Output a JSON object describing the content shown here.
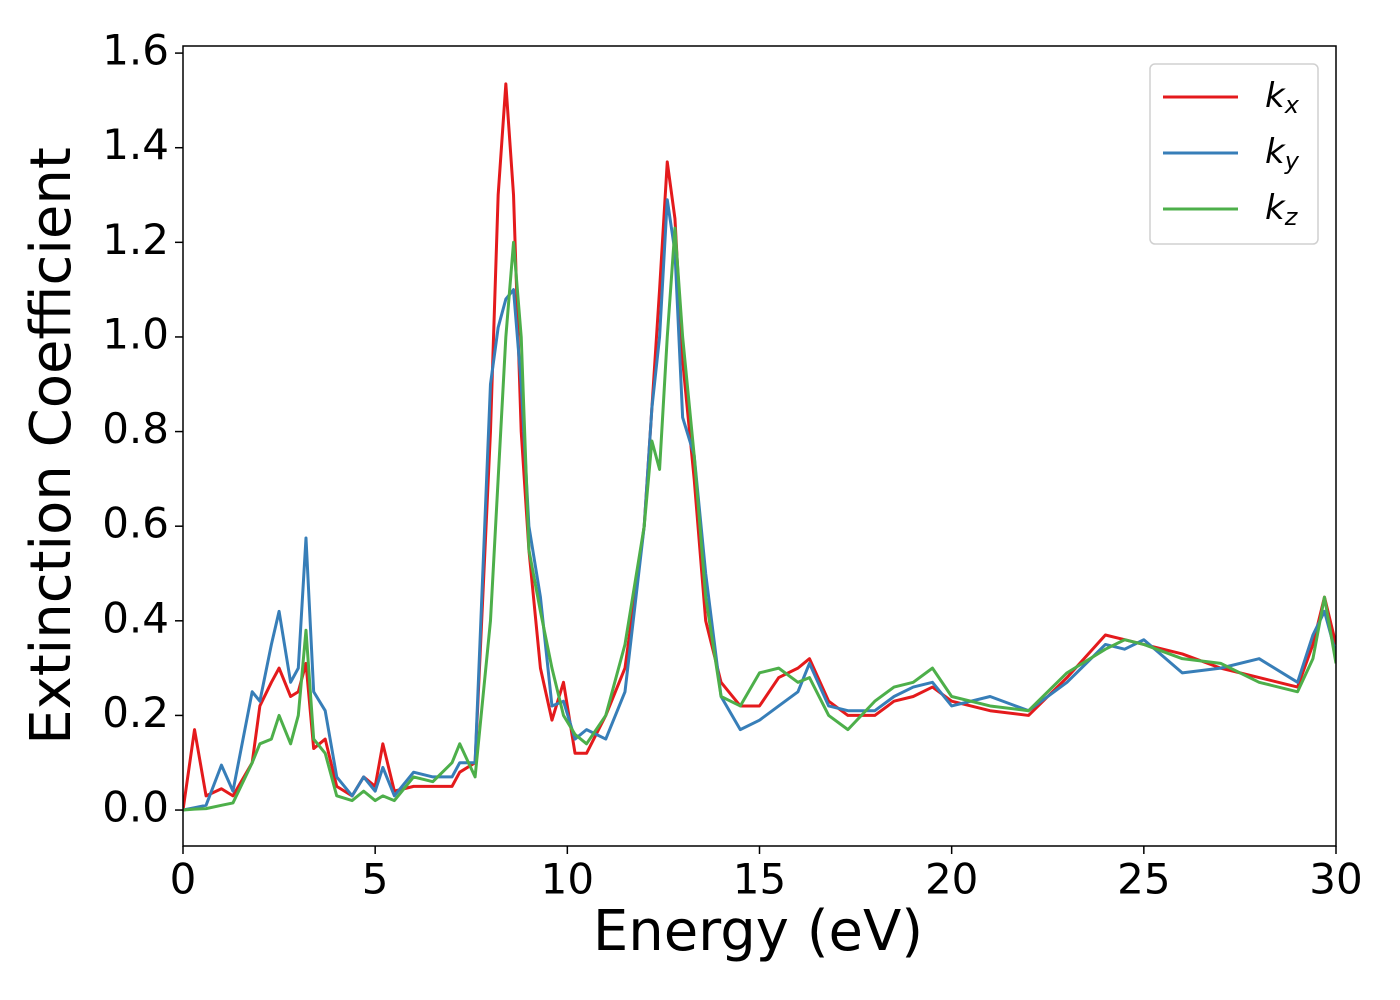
{
  "chart_data": {
    "type": "line",
    "xlabel": "Energy (eV)",
    "ylabel": "Extinction Coefficient",
    "x": [
      0,
      0.3,
      0.6,
      1.0,
      1.3,
      1.8,
      2.0,
      2.3,
      2.5,
      2.8,
      3.0,
      3.2,
      3.4,
      3.7,
      4.0,
      4.4,
      4.7,
      5.0,
      5.2,
      5.5,
      6.0,
      6.5,
      7.0,
      7.2,
      7.6,
      8.0,
      8.2,
      8.4,
      8.6,
      8.8,
      9.0,
      9.3,
      9.6,
      9.9,
      10.2,
      10.5,
      11.0,
      11.5,
      12.0,
      12.2,
      12.4,
      12.6,
      12.8,
      13.0,
      13.3,
      13.6,
      14.0,
      14.5,
      15.0,
      15.5,
      16.0,
      16.3,
      16.8,
      17.3,
      18.0,
      18.5,
      19.0,
      19.5,
      20.0,
      21.0,
      22.0,
      23.0,
      24.0,
      24.5,
      25.0,
      26.0,
      27.0,
      28.0,
      29.0,
      29.4,
      29.7,
      30.0
    ],
    "series": [
      {
        "name": "kx",
        "color": "#e41a1c",
        "values": [
          0,
          0.17,
          0.03,
          0.045,
          0.03,
          0.1,
          0.22,
          0.27,
          0.3,
          0.24,
          0.25,
          0.31,
          0.13,
          0.15,
          0.05,
          0.03,
          0.07,
          0.05,
          0.14,
          0.04,
          0.05,
          0.05,
          0.05,
          0.08,
          0.1,
          0.8,
          1.3,
          1.535,
          1.3,
          0.8,
          0.55,
          0.3,
          0.19,
          0.27,
          0.12,
          0.12,
          0.2,
          0.3,
          0.6,
          0.85,
          1.1,
          1.37,
          1.25,
          0.95,
          0.7,
          0.4,
          0.27,
          0.22,
          0.22,
          0.28,
          0.3,
          0.32,
          0.23,
          0.2,
          0.2,
          0.23,
          0.24,
          0.26,
          0.23,
          0.21,
          0.2,
          0.28,
          0.37,
          0.36,
          0.35,
          0.33,
          0.3,
          0.28,
          0.26,
          0.35,
          0.45,
          0.35
        ]
      },
      {
        "name": "ky",
        "color": "#377eb8",
        "values": [
          0,
          0.005,
          0.01,
          0.095,
          0.04,
          0.25,
          0.23,
          0.35,
          0.42,
          0.27,
          0.3,
          0.575,
          0.25,
          0.21,
          0.07,
          0.03,
          0.07,
          0.04,
          0.09,
          0.03,
          0.08,
          0.07,
          0.07,
          0.1,
          0.1,
          0.9,
          1.02,
          1.08,
          1.1,
          0.9,
          0.6,
          0.45,
          0.22,
          0.23,
          0.15,
          0.17,
          0.15,
          0.25,
          0.6,
          0.85,
          1.0,
          1.29,
          1.18,
          0.83,
          0.75,
          0.5,
          0.24,
          0.17,
          0.19,
          0.22,
          0.25,
          0.31,
          0.22,
          0.21,
          0.21,
          0.24,
          0.26,
          0.27,
          0.22,
          0.24,
          0.21,
          0.27,
          0.35,
          0.34,
          0.36,
          0.29,
          0.3,
          0.32,
          0.27,
          0.37,
          0.42,
          0.33
        ]
      },
      {
        "name": "kz",
        "color": "#4daf4a",
        "values": [
          0,
          0.002,
          0.003,
          0.01,
          0.015,
          0.1,
          0.14,
          0.15,
          0.2,
          0.14,
          0.2,
          0.38,
          0.15,
          0.12,
          0.03,
          0.02,
          0.04,
          0.02,
          0.03,
          0.02,
          0.07,
          0.06,
          0.1,
          0.14,
          0.07,
          0.4,
          0.7,
          1.0,
          1.2,
          1.0,
          0.55,
          0.42,
          0.3,
          0.2,
          0.16,
          0.14,
          0.2,
          0.35,
          0.6,
          0.78,
          0.72,
          1.0,
          1.23,
          1.0,
          0.75,
          0.45,
          0.24,
          0.22,
          0.29,
          0.3,
          0.27,
          0.28,
          0.2,
          0.17,
          0.23,
          0.26,
          0.27,
          0.3,
          0.24,
          0.22,
          0.21,
          0.29,
          0.34,
          0.36,
          0.35,
          0.32,
          0.31,
          0.27,
          0.25,
          0.32,
          0.45,
          0.31
        ]
      }
    ],
    "xlim": [
      0,
      30
    ],
    "xticks": [
      0,
      5,
      10,
      15,
      20,
      25,
      30
    ],
    "ylim": [
      -0.076,
      1.615
    ],
    "yticks": [
      {
        "value": 0,
        "label": "0.0"
      },
      0.2,
      0.4,
      0.6,
      0.8,
      {
        "value": 1,
        "label": "1.0"
      },
      1.2,
      1.4,
      1.6
    ],
    "legend": "upper right"
  }
}
